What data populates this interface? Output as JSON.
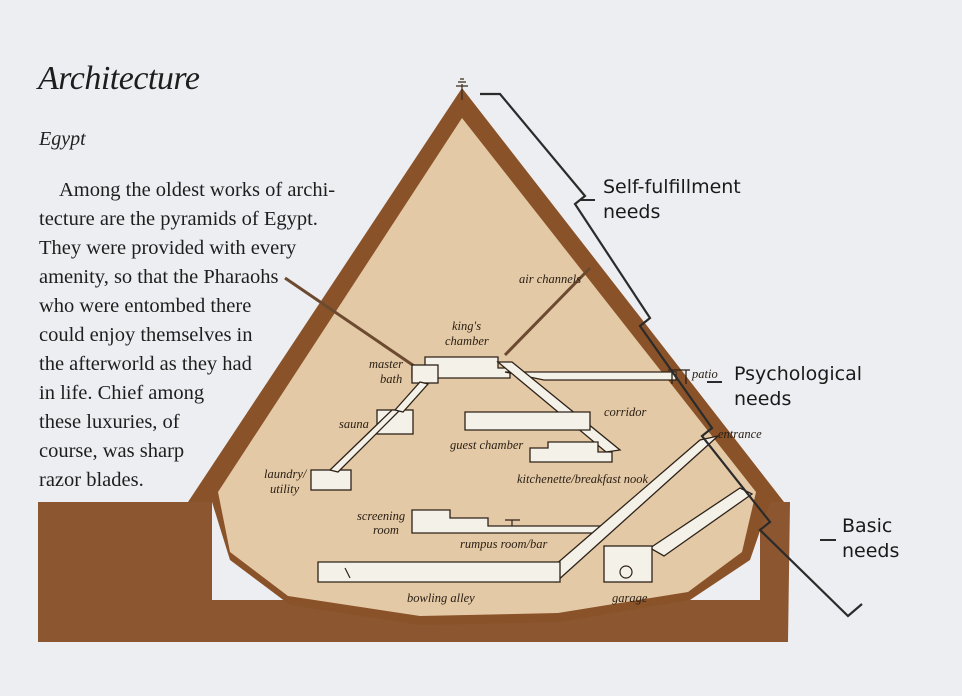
{
  "heading": "Architecture",
  "subheading": "Egypt",
  "paragraph_lines": [
    "Among the oldest works of archi-",
    "tecture are the pyramids of Egypt.",
    "They were provided with every",
    "amenity, so that the Pharaohs",
    "who were entombed there",
    "could enjoy themselves in",
    "the afterworld as they had",
    "in life. Chief among",
    "these luxuries, of",
    "course, was sharp",
    "razor blades."
  ],
  "rooms": {
    "air_channels": "air channels",
    "kings_chamber_1": "king's",
    "kings_chamber_2": "chamber",
    "master_bath_1": "master",
    "master_bath_2": "bath",
    "sauna": "sauna",
    "corridor": "corridor",
    "guest_chamber": "guest chamber",
    "laundry_1": "laundry/",
    "laundry_2": "utility",
    "kitchenette": "kitchenette/breakfast nook",
    "screening_1": "screening",
    "screening_2": "room",
    "rumpus": "rumpus room/bar",
    "bowling": "bowling alley",
    "garage": "garage",
    "entrance": "entrance",
    "patio": "patio"
  },
  "needs": {
    "self_fulfillment_1": "Self-fulfillment",
    "self_fulfillment_2": "needs",
    "psychological_1": "Psychological",
    "psychological_2": "needs",
    "basic_1": "Basic",
    "basic_2": "needs"
  },
  "colors": {
    "pyramid_edge": "#8a5228",
    "pyramid_fill": "#e4c9a6",
    "earth": "#8b5630",
    "room": "#f4f1e9",
    "background": "#edeef2"
  }
}
